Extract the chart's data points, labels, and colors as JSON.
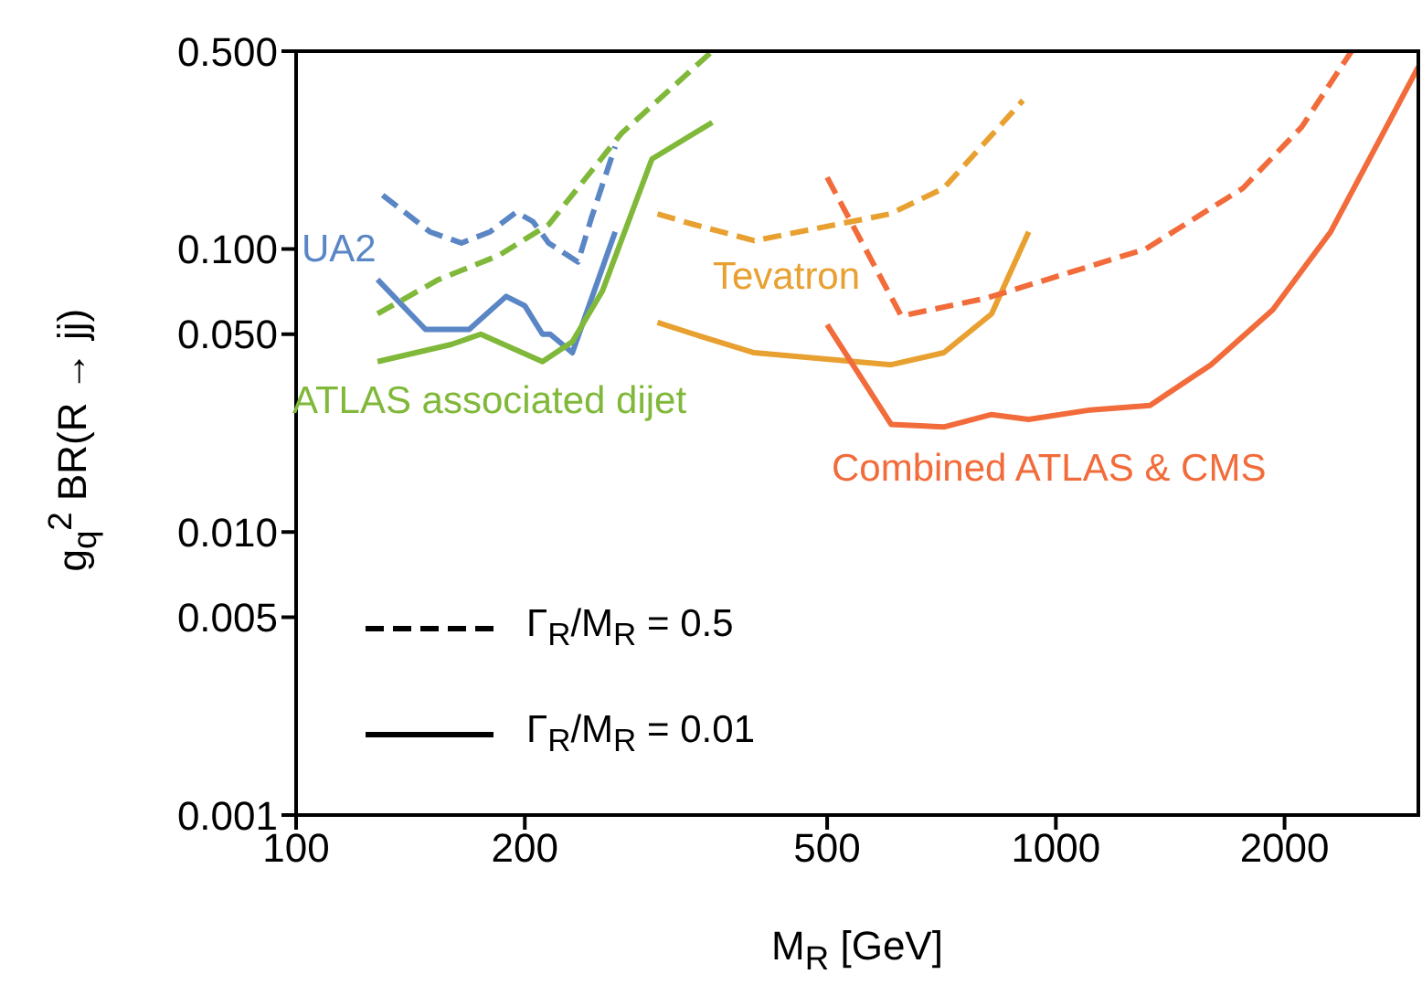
{
  "chart_data": {
    "type": "line",
    "xlabel": "M$_{R}$ [GeV]",
    "ylabel": "g$_{q}$$^{2}$ BR(R → jj)",
    "log": "xy",
    "xlim": [
      100,
      3000
    ],
    "xticks": [
      100,
      200,
      500,
      1000,
      2000
    ],
    "ylim": [
      0.001,
      0.5
    ],
    "yticks": [
      {
        "value": 0.001,
        "label": "0.001"
      },
      {
        "value": 0.005,
        "label": "0.005"
      },
      {
        "value": 0.01,
        "label": "0.010"
      },
      {
        "value": 0.05,
        "label": "0.050"
      },
      {
        "value": 0.1,
        "label": "0.100"
      },
      {
        "value": 0.5,
        "label": "0.500"
      }
    ],
    "annotations": [
      "Γ$_{R}$/M$_{R}$ = 0.5",
      "Γ$_{R}$/M$_{R}$ = 0.01"
    ],
    "series": [
      {
        "color": "#5b86c5",
        "line_style": "dashed",
        "x": [
          130,
          150,
          165,
          180,
          195,
          205,
          215,
          235,
          245,
          263
        ],
        "values": [
          0.155,
          0.115,
          0.105,
          0.115,
          0.135,
          0.125,
          0.105,
          0.09,
          0.13,
          0.23
        ]
      },
      {
        "name": "UA2",
        "color": "#5b86c5",
        "line_style": "solid",
        "x": [
          128,
          148,
          169,
          189,
          200,
          211,
          216,
          231,
          263
        ],
        "values": [
          0.078,
          0.052,
          0.052,
          0.068,
          0.063,
          0.05,
          0.05,
          0.043,
          0.115
        ]
      },
      {
        "color": "#80b83a",
        "line_style": "dashed",
        "x": [
          128,
          154,
          185,
          215,
          268,
          353
        ],
        "values": [
          0.059,
          0.078,
          0.095,
          0.122,
          0.256,
          0.5
        ]
      },
      {
        "name": "ATLAS associated dijet",
        "color": "#80b83a",
        "line_style": "solid",
        "x": [
          128,
          160,
          175,
          211,
          231,
          253,
          294,
          353
        ],
        "values": [
          0.04,
          0.046,
          0.05,
          0.04,
          0.047,
          0.071,
          0.208,
          0.28
        ]
      },
      {
        "color": "#e8a030",
        "line_style": "dashed",
        "x": [
          299,
          334,
          401,
          605,
          712,
          905
        ],
        "values": [
          0.133,
          0.122,
          0.107,
          0.133,
          0.164,
          0.335
        ]
      },
      {
        "name": "Tevatron",
        "color": "#e8a030",
        "line_style": "solid",
        "x": [
          299,
          334,
          401,
          607,
          712,
          823,
          921
        ],
        "values": [
          0.055,
          0.05,
          0.043,
          0.039,
          0.043,
          0.059,
          0.115
        ]
      },
      {
        "color": "#f26b3a",
        "line_style": "dashed",
        "x": [
          500,
          626,
          810,
          1313,
          1763,
          2107,
          2450
        ],
        "values": [
          0.179,
          0.058,
          0.067,
          0.1,
          0.164,
          0.27,
          0.5
        ]
      },
      {
        "name": "Combined ATLAS & CMS",
        "color": "#f26b3a",
        "line_style": "solid",
        "x": [
          500,
          607,
          712,
          823,
          921,
          1110,
          1330,
          1600,
          1930,
          2300,
          3000
        ],
        "values": [
          0.054,
          0.024,
          0.0235,
          0.026,
          0.025,
          0.027,
          0.028,
          0.039,
          0.061,
          0.115,
          0.44
        ]
      }
    ]
  }
}
